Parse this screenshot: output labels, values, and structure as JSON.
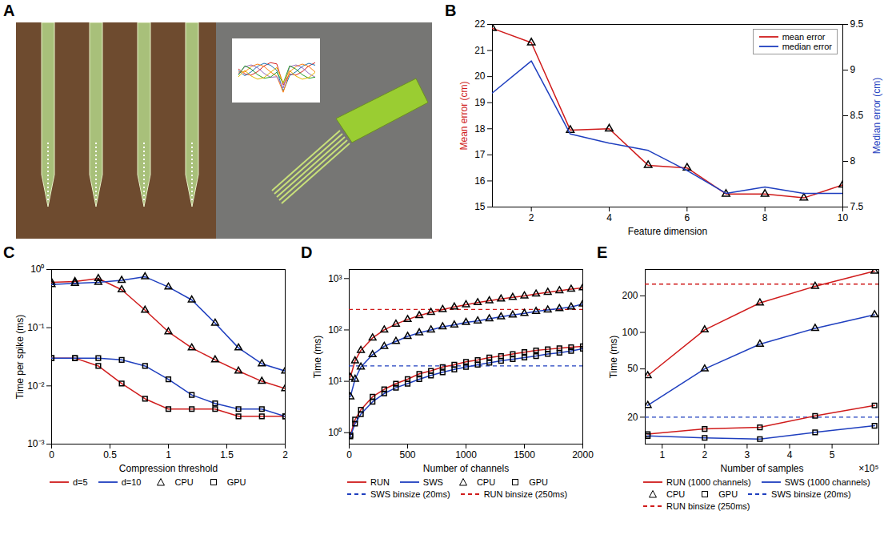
{
  "chart_data": [
    {
      "panel": "A",
      "type": "image"
    },
    {
      "panel": "B",
      "type": "line",
      "x": [
        1,
        2,
        3,
        4,
        5,
        6,
        7,
        8,
        9,
        10
      ],
      "xlabel": "Feature dimension",
      "xlim": [
        1,
        10
      ],
      "xticks": [
        2,
        4,
        6,
        8,
        10
      ],
      "ylabel": "Mean error (cm)",
      "ylim": [
        15,
        22
      ],
      "yticks": [
        15,
        16,
        17,
        18,
        19,
        20,
        21,
        22
      ],
      "y2label": "Median error (cm)",
      "y2lim": [
        7.5,
        9.5
      ],
      "y2ticks": [
        7.5,
        8,
        8.5,
        9,
        9.5
      ],
      "legend": "top-right",
      "series": [
        {
          "name": "mean error",
          "color": "#d01c1c",
          "marker": "triangle",
          "values": [
            21.85,
            21.3,
            17.95,
            18.0,
            16.6,
            16.5,
            15.5,
            15.5,
            15.35,
            15.85
          ]
        },
        {
          "name": "median error",
          "color": "#1f3fbf",
          "axis": "y2",
          "values": [
            8.75,
            9.1,
            8.3,
            8.2,
            8.12,
            7.9,
            7.65,
            7.72,
            7.65,
            7.65
          ]
        }
      ]
    },
    {
      "panel": "C",
      "type": "line",
      "log": "y",
      "x": [
        0,
        0.2,
        0.4,
        0.6,
        0.8,
        1.0,
        1.2,
        1.4,
        1.6,
        1.8,
        2.0
      ],
      "xlabel": "Compression threshold",
      "xlim": [
        0,
        2
      ],
      "xticks": [
        0,
        0.5,
        1,
        1.5,
        2
      ],
      "ylabel": "Time per spike (ms)",
      "ylim": [
        0.001,
        1
      ],
      "yticks": [
        {
          "value": 0.001,
          "label": "10⁻³"
        },
        {
          "value": 0.01,
          "label": "10⁻²"
        },
        {
          "value": 0.1,
          "label": "10⁻¹"
        },
        {
          "value": 1,
          "label": "10⁰"
        }
      ],
      "legend": "bottom",
      "series": [
        {
          "name": "d=5",
          "device": "CPU",
          "color": "#d01c1c",
          "marker": "triangle",
          "values": [
            0.6,
            0.62,
            0.7,
            0.45,
            0.2,
            0.085,
            0.045,
            0.028,
            0.018,
            0.012,
            0.009
          ]
        },
        {
          "name": "d=10",
          "device": "CPU",
          "color": "#1f3fbf",
          "marker": "triangle",
          "values": [
            0.55,
            0.58,
            0.6,
            0.65,
            0.75,
            0.5,
            0.3,
            0.12,
            0.045,
            0.024,
            0.018
          ]
        },
        {
          "name": "d=5",
          "device": "GPU",
          "color": "#d01c1c",
          "marker": "square",
          "values": [
            0.03,
            0.03,
            0.022,
            0.011,
            0.006,
            0.004,
            0.004,
            0.004,
            0.003,
            0.003,
            0.003
          ]
        },
        {
          "name": "d=10",
          "device": "GPU",
          "color": "#1f3fbf",
          "marker": "square",
          "values": [
            0.03,
            0.03,
            0.03,
            0.028,
            0.022,
            0.013,
            0.007,
            0.005,
            0.004,
            0.004,
            0.003
          ]
        }
      ]
    },
    {
      "panel": "D",
      "type": "line",
      "log": "y",
      "x": [
        10,
        50,
        100,
        200,
        300,
        400,
        500,
        600,
        700,
        800,
        900,
        1000,
        1100,
        1200,
        1300,
        1400,
        1500,
        1600,
        1700,
        1800,
        1900,
        2000
      ],
      "xlabel": "Number of channels",
      "xlim": [
        0,
        2000
      ],
      "xticks": [
        0,
        500,
        1000,
        1500,
        2000
      ],
      "ylabel": "Time (ms)",
      "ylim": [
        0.6,
        1500
      ],
      "yticks": [
        {
          "value": 1,
          "label": "10⁰"
        },
        {
          "value": 10,
          "label": "10¹"
        },
        {
          "value": 100,
          "label": "10²"
        },
        {
          "value": 1000,
          "label": "10³"
        }
      ],
      "legend": "bottom",
      "series": [
        {
          "name": "RUN",
          "device": "CPU",
          "color": "#d01c1c",
          "marker": "triangle",
          "values": [
            12,
            25,
            40,
            70,
            100,
            130,
            160,
            190,
            220,
            250,
            280,
            310,
            340,
            370,
            400,
            430,
            460,
            500,
            540,
            580,
            620,
            660
          ]
        },
        {
          "name": "SWS",
          "device": "CPU",
          "color": "#1f3fbf",
          "marker": "triangle",
          "values": [
            5,
            11,
            19,
            33,
            48,
            60,
            75,
            88,
            100,
            115,
            125,
            140,
            150,
            165,
            180,
            195,
            210,
            230,
            245,
            260,
            280,
            320
          ]
        },
        {
          "name": "RUN",
          "device": "GPU",
          "color": "#d01c1c",
          "marker": "square",
          "values": [
            0.9,
            1.8,
            2.8,
            5,
            7,
            9,
            11,
            14,
            16,
            19,
            21,
            24,
            26,
            29,
            31,
            34,
            37,
            40,
            42,
            44,
            46,
            48
          ]
        },
        {
          "name": "SWS",
          "device": "GPU",
          "color": "#1f3fbf",
          "marker": "square",
          "values": [
            0.85,
            1.5,
            2.3,
            4,
            5.8,
            7.5,
            9,
            11,
            13,
            15,
            17,
            19,
            21,
            23,
            25,
            27,
            29,
            31,
            34,
            36,
            39,
            43
          ]
        }
      ],
      "reference_lines": [
        {
          "name": "SWS binsize (20ms)",
          "value": 20,
          "color": "#1f3fbf",
          "line_style": "dashed"
        },
        {
          "name": "RUN binsize (250ms)",
          "value": 250,
          "color": "#d01c1c",
          "line_style": "dashed"
        }
      ]
    },
    {
      "panel": "E",
      "type": "line",
      "log": "y",
      "x": [
        0.66,
        2,
        3.3,
        4.6,
        6
      ],
      "xlabel": "Number of samples",
      "x_exponent_label": "×10⁵",
      "xlim": [
        0.6,
        6.1
      ],
      "xticks": [
        1,
        2,
        3,
        4,
        5
      ],
      "ylabel": "Time (ms)",
      "ylim": [
        12,
        330
      ],
      "yticks": [
        20,
        50,
        100,
        200
      ],
      "legend": "bottom",
      "series": [
        {
          "name": "RUN (1000 channels)",
          "device": "CPU",
          "color": "#d01c1c",
          "marker": "triangle",
          "values": [
            44,
            105,
            175,
            240,
            320
          ]
        },
        {
          "name": "SWS (1000 channels)",
          "device": "CPU",
          "color": "#1f3fbf",
          "marker": "triangle",
          "values": [
            25,
            50,
            80,
            108,
            140
          ]
        },
        {
          "name": "RUN (1000 channels)",
          "device": "GPU",
          "color": "#d01c1c",
          "marker": "square",
          "values": [
            14.5,
            16,
            16.5,
            20.5,
            25
          ]
        },
        {
          "name": "SWS (1000 channels)",
          "device": "GPU",
          "color": "#1f3fbf",
          "marker": "square",
          "values": [
            14,
            13.5,
            13.2,
            15,
            17
          ]
        }
      ],
      "reference_lines": [
        {
          "name": "SWS binsize (20ms)",
          "value": 20,
          "color": "#1f3fbf",
          "line_style": "dashed"
        },
        {
          "name": "RUN binsize (250ms)",
          "value": 250,
          "color": "#d01c1c",
          "line_style": "dashed"
        }
      ]
    }
  ]
}
